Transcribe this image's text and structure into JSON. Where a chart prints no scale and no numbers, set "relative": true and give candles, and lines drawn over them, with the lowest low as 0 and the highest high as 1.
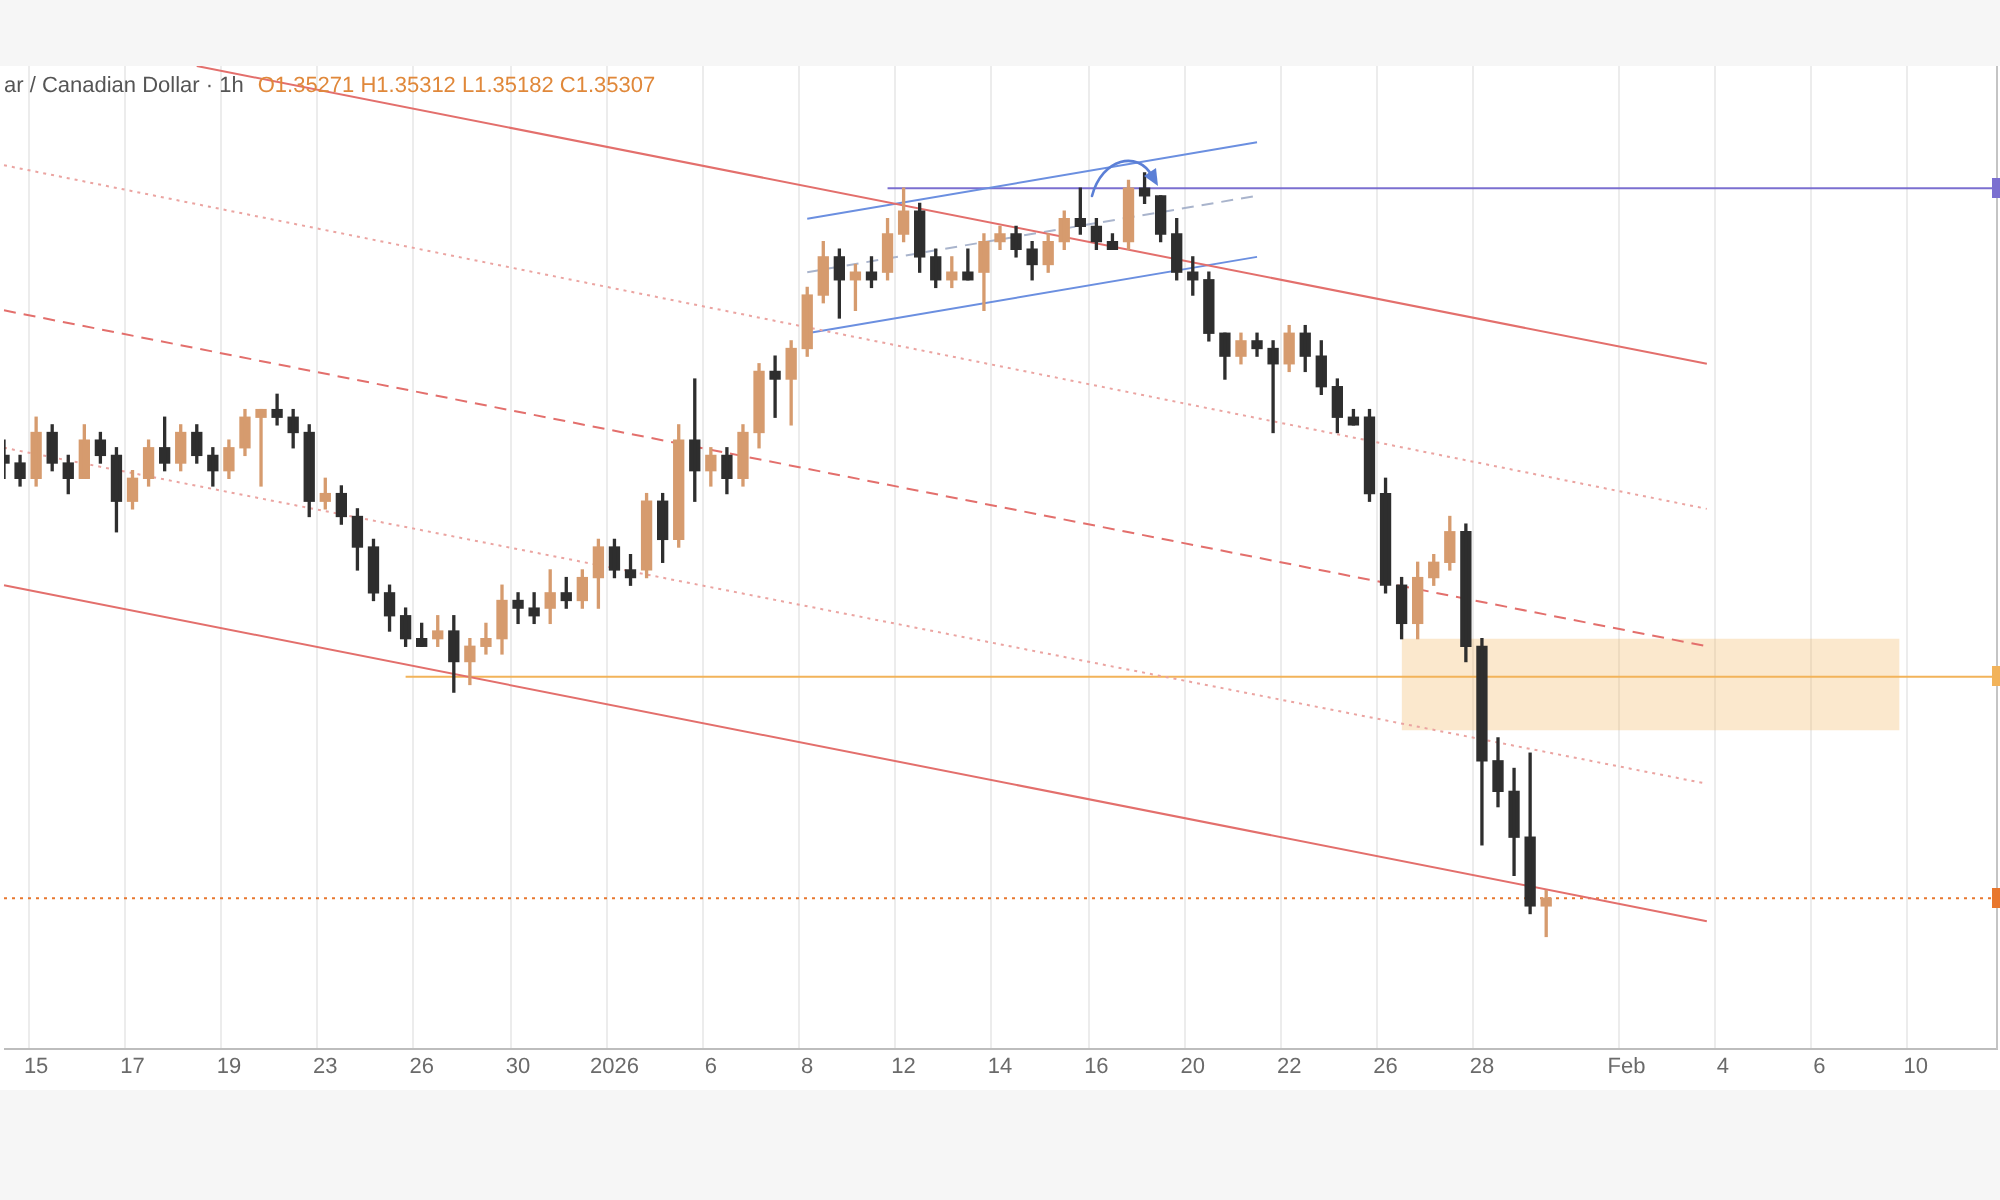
{
  "chart_data": {
    "type": "candlestick",
    "title": "ar / Canadian Dollar · 1h",
    "subtitle": "O1.35271 H1.35312 L1.35182 C1.35307",
    "relative": true,
    "grid": "x",
    "categories": [
      null,
      null,
      "15",
      null,
      null,
      null,
      null,
      null,
      "17",
      null,
      null,
      null,
      null,
      null,
      "19",
      null,
      null,
      null,
      null,
      null,
      "23",
      null,
      null,
      null,
      null,
      null,
      "26",
      null,
      null,
      null,
      null,
      null,
      "30",
      null,
      null,
      null,
      null,
      null,
      "2026",
      null,
      null,
      null,
      null,
      null,
      "6",
      null,
      null,
      null,
      null,
      null,
      "8",
      null,
      null,
      null,
      null,
      null,
      "12",
      null,
      null,
      null,
      null,
      null,
      "14",
      null,
      null,
      null,
      null,
      null,
      "16",
      null,
      null,
      null,
      null,
      null,
      "20",
      null,
      null,
      null,
      null,
      null,
      "22",
      null,
      null,
      null,
      null,
      null,
      "26",
      null,
      null,
      null,
      null,
      null,
      "28",
      null,
      null,
      null,
      null,
      null,
      null,
      null,
      null,
      "Feb",
      null,
      null,
      null,
      null,
      null,
      "4",
      null,
      null,
      null,
      null,
      null,
      "6",
      null,
      null,
      null,
      null,
      null,
      "10",
      null,
      null,
      null,
      null,
      null
    ],
    "ohlc": [
      [
        0.63,
        0.65,
        0.6,
        0.62
      ],
      [
        0.62,
        0.63,
        0.59,
        0.6
      ],
      [
        0.6,
        0.68,
        0.59,
        0.66
      ],
      [
        0.66,
        0.67,
        0.61,
        0.62
      ],
      [
        0.62,
        0.63,
        0.58,
        0.6
      ],
      [
        0.6,
        0.67,
        0.6,
        0.65
      ],
      [
        0.65,
        0.66,
        0.62,
        0.63
      ],
      [
        0.63,
        0.64,
        0.53,
        0.57
      ],
      [
        0.57,
        0.61,
        0.56,
        0.6
      ],
      [
        0.6,
        0.65,
        0.59,
        0.64
      ],
      [
        0.64,
        0.68,
        0.61,
        0.62
      ],
      [
        0.62,
        0.67,
        0.61,
        0.66
      ],
      [
        0.66,
        0.67,
        0.62,
        0.63
      ],
      [
        0.63,
        0.64,
        0.59,
        0.61
      ],
      [
        0.61,
        0.65,
        0.6,
        0.64
      ],
      [
        0.64,
        0.69,
        0.63,
        0.68
      ],
      [
        0.68,
        0.69,
        0.59,
        0.69
      ],
      [
        0.69,
        0.71,
        0.67,
        0.68
      ],
      [
        0.68,
        0.69,
        0.64,
        0.66
      ],
      [
        0.66,
        0.67,
        0.55,
        0.57
      ],
      [
        0.57,
        0.6,
        0.56,
        0.58
      ],
      [
        0.58,
        0.59,
        0.54,
        0.55
      ],
      [
        0.55,
        0.56,
        0.48,
        0.51
      ],
      [
        0.51,
        0.52,
        0.44,
        0.45
      ],
      [
        0.45,
        0.46,
        0.4,
        0.42
      ],
      [
        0.42,
        0.43,
        0.38,
        0.39
      ],
      [
        0.39,
        0.41,
        0.38,
        0.38
      ],
      [
        0.39,
        0.42,
        0.38,
        0.4
      ],
      [
        0.4,
        0.42,
        0.32,
        0.36
      ],
      [
        0.36,
        0.39,
        0.33,
        0.38
      ],
      [
        0.38,
        0.41,
        0.37,
        0.39
      ],
      [
        0.39,
        0.46,
        0.37,
        0.44
      ],
      [
        0.44,
        0.45,
        0.41,
        0.43
      ],
      [
        0.43,
        0.45,
        0.41,
        0.42
      ],
      [
        0.43,
        0.48,
        0.41,
        0.45
      ],
      [
        0.45,
        0.47,
        0.43,
        0.44
      ],
      [
        0.44,
        0.48,
        0.43,
        0.47
      ],
      [
        0.47,
        0.52,
        0.43,
        0.51
      ],
      [
        0.51,
        0.52,
        0.47,
        0.48
      ],
      [
        0.48,
        0.5,
        0.46,
        0.47
      ],
      [
        0.48,
        0.58,
        0.47,
        0.57
      ],
      [
        0.57,
        0.58,
        0.49,
        0.52
      ],
      [
        0.52,
        0.67,
        0.51,
        0.65
      ],
      [
        0.65,
        0.73,
        0.57,
        0.61
      ],
      [
        0.61,
        0.64,
        0.59,
        0.63
      ],
      [
        0.63,
        0.64,
        0.58,
        0.6
      ],
      [
        0.6,
        0.67,
        0.59,
        0.66
      ],
      [
        0.66,
        0.75,
        0.64,
        0.74
      ],
      [
        0.74,
        0.76,
        0.68,
        0.73
      ],
      [
        0.73,
        0.78,
        0.67,
        0.77
      ],
      [
        0.77,
        0.85,
        0.76,
        0.84
      ],
      [
        0.84,
        0.91,
        0.83,
        0.89
      ],
      [
        0.89,
        0.9,
        0.81,
        0.86
      ],
      [
        0.86,
        0.88,
        0.82,
        0.87
      ],
      [
        0.87,
        0.89,
        0.85,
        0.86
      ],
      [
        0.87,
        0.94,
        0.86,
        0.92
      ],
      [
        0.92,
        0.98,
        0.91,
        0.95
      ],
      [
        0.95,
        0.96,
        0.87,
        0.89
      ],
      [
        0.89,
        0.9,
        0.85,
        0.86
      ],
      [
        0.86,
        0.89,
        0.85,
        0.87
      ],
      [
        0.87,
        0.9,
        0.86,
        0.86
      ],
      [
        0.87,
        0.92,
        0.82,
        0.91
      ],
      [
        0.91,
        0.93,
        0.9,
        0.92
      ],
      [
        0.92,
        0.93,
        0.89,
        0.9
      ],
      [
        0.9,
        0.91,
        0.86,
        0.88
      ],
      [
        0.88,
        0.92,
        0.87,
        0.91
      ],
      [
        0.91,
        0.95,
        0.9,
        0.94
      ],
      [
        0.94,
        0.98,
        0.92,
        0.93
      ],
      [
        0.93,
        0.94,
        0.9,
        0.91
      ],
      [
        0.91,
        0.92,
        0.9,
        0.9
      ],
      [
        0.91,
        0.99,
        0.9,
        0.98
      ],
      [
        0.98,
        1,
        0.96,
        0.97
      ],
      [
        0.97,
        0.97,
        0.91,
        0.92
      ],
      [
        0.92,
        0.94,
        0.86,
        0.87
      ],
      [
        0.87,
        0.89,
        0.84,
        0.86
      ],
      [
        0.86,
        0.87,
        0.78,
        0.79
      ],
      [
        0.79,
        0.79,
        0.73,
        0.76
      ],
      [
        0.76,
        0.79,
        0.75,
        0.78
      ],
      [
        0.78,
        0.79,
        0.76,
        0.77
      ],
      [
        0.77,
        0.78,
        0.66,
        0.75
      ],
      [
        0.75,
        0.8,
        0.74,
        0.79
      ],
      [
        0.79,
        0.8,
        0.74,
        0.76
      ],
      [
        0.76,
        0.78,
        0.71,
        0.72
      ],
      [
        0.72,
        0.73,
        0.66,
        0.68
      ],
      [
        0.68,
        0.69,
        0.67,
        0.67
      ],
      [
        0.68,
        0.69,
        0.57,
        0.58
      ],
      [
        0.58,
        0.6,
        0.45,
        0.46
      ],
      [
        0.46,
        0.47,
        0.39,
        0.41
      ],
      [
        0.41,
        0.49,
        0.39,
        0.47
      ],
      [
        0.47,
        0.5,
        0.46,
        0.49
      ],
      [
        0.49,
        0.55,
        0.48,
        0.53
      ],
      [
        0.53,
        0.54,
        0.36,
        0.38
      ],
      [
        0.38,
        0.39,
        0.12,
        0.23
      ],
      [
        0.23,
        0.26,
        0.17,
        0.19
      ],
      [
        0.19,
        0.22,
        0.08,
        0.13
      ],
      [
        0.13,
        0.24,
        0.03,
        0.04
      ],
      [
        0.04,
        0.06,
        0,
        0.05
      ],
      null,
      null,
      null,
      null,
      null,
      null,
      null,
      null,
      null,
      null,
      null,
      null,
      null,
      null,
      null,
      null,
      null,
      null,
      null,
      null,
      null,
      null,
      null,
      null,
      null,
      null,
      null,
      null
    ],
    "colors": [
      "#2e2e2e",
      "#2e2e2e",
      "#d69b6e",
      "#2e2e2e",
      "#2e2e2e",
      "#d69b6e",
      "#2e2e2e",
      "#2e2e2e",
      "#d69b6e",
      "#d69b6e",
      "#2e2e2e",
      "#d69b6e",
      "#2e2e2e",
      "#2e2e2e",
      "#d69b6e",
      "#d69b6e",
      "#d69b6e",
      "#2e2e2e",
      "#2e2e2e",
      "#2e2e2e",
      "#d69b6e",
      "#2e2e2e",
      "#2e2e2e",
      "#2e2e2e",
      "#2e2e2e",
      "#2e2e2e",
      "#2e2e2e",
      "#d69b6e",
      "#2e2e2e",
      "#d69b6e",
      "#d69b6e",
      "#d69b6e",
      "#2e2e2e",
      "#2e2e2e",
      "#d69b6e",
      "#2e2e2e",
      "#d69b6e",
      "#d69b6e",
      "#2e2e2e",
      "#2e2e2e",
      "#d69b6e",
      "#2e2e2e",
      "#d69b6e",
      "#2e2e2e",
      "#d69b6e",
      "#2e2e2e",
      "#d69b6e",
      "#d69b6e",
      "#2e2e2e",
      "#d69b6e",
      "#d69b6e",
      "#d69b6e",
      "#2e2e2e",
      "#d69b6e",
      "#2e2e2e",
      "#d69b6e",
      "#d69b6e",
      "#2e2e2e",
      "#2e2e2e",
      "#d69b6e",
      "#2e2e2e",
      "#d69b6e",
      "#d69b6e",
      "#2e2e2e",
      "#2e2e2e",
      "#d69b6e",
      "#d69b6e",
      "#2e2e2e",
      "#2e2e2e",
      "#2e2e2e",
      "#d69b6e",
      "#2e2e2e",
      "#2e2e2e",
      "#2e2e2e",
      "#2e2e2e",
      "#2e2e2e",
      "#2e2e2e",
      "#d69b6e",
      "#2e2e2e",
      "#2e2e2e",
      "#d69b6e",
      "#2e2e2e",
      "#2e2e2e",
      "#2e2e2e",
      "#2e2e2e",
      "#2e2e2e",
      "#2e2e2e",
      "#2e2e2e",
      "#d69b6e",
      "#d69b6e",
      "#d69b6e",
      "#2e2e2e",
      "#2e2e2e",
      "#2e2e2e",
      "#2e2e2e",
      "#2e2e2e",
      "#d69b6e",
      null,
      null,
      null,
      null,
      null,
      null,
      null,
      null,
      null,
      null,
      null,
      null,
      null,
      null,
      null,
      null,
      null,
      null,
      null,
      null,
      null,
      null,
      null,
      null,
      null,
      null,
      null,
      null
    ],
    "series": [
      {
        "type": "line",
        "color": "#e36f6c",
        "line_style": "solid",
        "values": [
          null,
          null,
          null,
          null,
          null,
          null,
          null,
          null,
          null,
          null,
          null,
          null,
          1.14,
          null,
          null,
          null,
          null,
          null,
          null,
          null,
          null,
          null,
          null,
          null,
          null,
          null,
          null,
          null,
          null,
          null,
          null,
          null,
          null,
          null,
          null,
          null,
          null,
          null,
          null,
          null,
          null,
          null,
          null,
          null,
          null,
          null,
          null,
          null,
          null,
          null,
          null,
          null,
          null,
          null,
          null,
          null,
          null,
          null,
          null,
          null,
          null,
          null,
          null,
          null,
          null,
          null,
          null,
          null,
          null,
          null,
          null,
          null,
          null,
          null,
          null,
          null,
          null,
          null,
          null,
          null,
          null,
          null,
          null,
          null,
          null,
          null,
          null,
          null,
          null,
          null,
          null,
          null,
          null,
          null,
          null,
          null,
          null,
          null,
          null,
          null,
          null,
          null,
          null,
          null,
          null,
          null,
          0.75,
          null,
          null,
          null,
          null,
          null,
          null,
          null,
          null,
          null,
          null,
          null,
          null,
          null,
          null,
          null,
          null,
          null,
          null
        ]
      },
      {
        "type": "line",
        "color": "#eba4a1",
        "line_style": "dotted",
        "values": [
          1.01,
          null,
          null,
          null,
          null,
          null,
          null,
          null,
          null,
          null,
          null,
          null,
          null,
          null,
          null,
          null,
          null,
          null,
          null,
          null,
          null,
          null,
          null,
          null,
          null,
          null,
          null,
          null,
          null,
          null,
          null,
          null,
          null,
          null,
          null,
          null,
          null,
          null,
          null,
          null,
          null,
          null,
          null,
          null,
          null,
          null,
          null,
          null,
          null,
          null,
          null,
          null,
          null,
          null,
          null,
          null,
          null,
          null,
          null,
          null,
          null,
          null,
          null,
          null,
          null,
          null,
          null,
          null,
          null,
          null,
          null,
          null,
          null,
          null,
          null,
          null,
          null,
          null,
          null,
          null,
          null,
          null,
          null,
          null,
          null,
          null,
          null,
          null,
          null,
          null,
          null,
          null,
          null,
          null,
          null,
          null,
          null,
          null,
          null,
          null,
          null,
          null,
          null,
          null,
          null,
          null,
          0.56,
          null,
          null,
          null,
          null,
          null,
          null,
          null,
          null,
          null,
          null,
          null,
          null,
          null,
          null,
          null,
          null,
          null,
          null
        ]
      },
      {
        "type": "line",
        "color": "#e36f6c",
        "line_style": "dashed",
        "values": [
          0.82,
          null,
          null,
          null,
          null,
          null,
          null,
          null,
          null,
          null,
          null,
          null,
          null,
          null,
          null,
          null,
          null,
          null,
          null,
          null,
          null,
          null,
          null,
          null,
          null,
          null,
          null,
          null,
          null,
          null,
          null,
          null,
          null,
          null,
          null,
          null,
          null,
          null,
          null,
          null,
          null,
          null,
          null,
          null,
          null,
          null,
          null,
          null,
          null,
          null,
          null,
          null,
          null,
          null,
          null,
          null,
          null,
          null,
          null,
          null,
          null,
          null,
          null,
          null,
          null,
          null,
          null,
          null,
          null,
          null,
          null,
          null,
          null,
          null,
          null,
          null,
          null,
          null,
          null,
          null,
          null,
          null,
          null,
          null,
          null,
          null,
          null,
          null,
          null,
          null,
          null,
          null,
          null,
          null,
          null,
          null,
          null,
          null,
          null,
          null,
          null,
          null,
          null,
          null,
          null,
          null,
          0.38,
          null,
          null,
          null,
          null,
          null,
          null,
          null,
          null,
          null,
          null,
          null,
          null,
          null,
          null,
          null,
          null,
          null,
          null
        ]
      },
      {
        "type": "line",
        "color": "#eba4a1",
        "line_style": "dotted",
        "values": [
          0.64,
          null,
          null,
          null,
          null,
          null,
          null,
          null,
          null,
          null,
          null,
          null,
          null,
          null,
          null,
          null,
          null,
          null,
          null,
          null,
          null,
          null,
          null,
          null,
          null,
          null,
          null,
          null,
          null,
          null,
          null,
          null,
          null,
          null,
          null,
          null,
          null,
          null,
          null,
          null,
          null,
          null,
          null,
          null,
          null,
          null,
          null,
          null,
          null,
          null,
          null,
          null,
          null,
          null,
          null,
          null,
          null,
          null,
          null,
          null,
          null,
          null,
          null,
          null,
          null,
          null,
          null,
          null,
          null,
          null,
          null,
          null,
          null,
          null,
          null,
          null,
          null,
          null,
          null,
          null,
          null,
          null,
          null,
          null,
          null,
          null,
          null,
          null,
          null,
          null,
          null,
          null,
          null,
          null,
          null,
          null,
          null,
          null,
          null,
          null,
          null,
          null,
          null,
          null,
          null,
          null,
          0.2,
          null,
          null,
          null,
          null,
          null,
          null,
          null,
          null,
          null,
          null,
          null,
          null,
          null,
          null,
          null,
          null,
          null,
          null
        ]
      },
      {
        "type": "line",
        "color": "#e36f6c",
        "line_style": "solid",
        "values": [
          0.46,
          null,
          null,
          null,
          null,
          null,
          null,
          null,
          null,
          null,
          null,
          null,
          null,
          null,
          null,
          null,
          null,
          null,
          null,
          null,
          null,
          null,
          null,
          null,
          null,
          null,
          null,
          null,
          null,
          null,
          null,
          null,
          null,
          null,
          null,
          null,
          null,
          null,
          null,
          null,
          null,
          null,
          null,
          null,
          null,
          null,
          null,
          null,
          null,
          null,
          null,
          null,
          null,
          null,
          null,
          null,
          null,
          null,
          null,
          null,
          null,
          null,
          null,
          null,
          null,
          null,
          null,
          null,
          null,
          null,
          null,
          null,
          null,
          null,
          null,
          null,
          null,
          null,
          null,
          null,
          null,
          null,
          null,
          null,
          null,
          null,
          null,
          null,
          null,
          null,
          null,
          null,
          null,
          null,
          null,
          null,
          null,
          null,
          null,
          null,
          null,
          null,
          null,
          null,
          null,
          null,
          0.02,
          null,
          null,
          null,
          null,
          null,
          null,
          null,
          null,
          null,
          null,
          null,
          null,
          null,
          null,
          null,
          null,
          null,
          null
        ]
      },
      {
        "type": "line",
        "color": "#6b8fe0",
        "line_style": "solid",
        "values": [
          null,
          null,
          null,
          null,
          null,
          null,
          null,
          null,
          null,
          null,
          null,
          null,
          null,
          null,
          null,
          null,
          null,
          null,
          null,
          null,
          null,
          null,
          null,
          null,
          null,
          null,
          null,
          null,
          null,
          null,
          null,
          null,
          null,
          null,
          null,
          null,
          null,
          null,
          null,
          null,
          null,
          null,
          null,
          null,
          null,
          null,
          null,
          null,
          null,
          null,
          0.94,
          null,
          null,
          null,
          null,
          null,
          null,
          null,
          null,
          null,
          null,
          null,
          null,
          null,
          null,
          null,
          null,
          null,
          null,
          null,
          null,
          null,
          null,
          null,
          null,
          null,
          null,
          null,
          1.04,
          null,
          null,
          null,
          null,
          null,
          null,
          null,
          null,
          null,
          null,
          null,
          null,
          null,
          null,
          null,
          null,
          null,
          null,
          null,
          null,
          null,
          null,
          null,
          null,
          null,
          null,
          null,
          null,
          null,
          null,
          null,
          null,
          null,
          null,
          null,
          null,
          null,
          null,
          null,
          null,
          null,
          null,
          null,
          null,
          null,
          null
        ]
      },
      {
        "type": "line",
        "color": "#6b8fe0",
        "line_style": "solid",
        "values": [
          null,
          null,
          null,
          null,
          null,
          null,
          null,
          null,
          null,
          null,
          null,
          null,
          null,
          null,
          null,
          null,
          null,
          null,
          null,
          null,
          null,
          null,
          null,
          null,
          null,
          null,
          null,
          null,
          null,
          null,
          null,
          null,
          null,
          null,
          null,
          null,
          null,
          null,
          null,
          null,
          null,
          null,
          null,
          null,
          null,
          null,
          null,
          null,
          null,
          null,
          0.79,
          null,
          null,
          null,
          null,
          null,
          null,
          null,
          null,
          null,
          null,
          null,
          null,
          null,
          null,
          null,
          null,
          null,
          null,
          null,
          null,
          null,
          null,
          null,
          null,
          null,
          null,
          null,
          0.89,
          null,
          null,
          null,
          null,
          null,
          null,
          null,
          null,
          null,
          null,
          null,
          null,
          null,
          null,
          null,
          null,
          null,
          null,
          null,
          null,
          null,
          null,
          null,
          null,
          null,
          null,
          null,
          null,
          null,
          null,
          null,
          null,
          null,
          null,
          null,
          null,
          null,
          null,
          null,
          null,
          null,
          null,
          null,
          null,
          null,
          null
        ]
      },
      {
        "type": "line",
        "color": "#a9b4cc",
        "line_style": "dashed",
        "values": [
          null,
          null,
          null,
          null,
          null,
          null,
          null,
          null,
          null,
          null,
          null,
          null,
          null,
          null,
          null,
          null,
          null,
          null,
          null,
          null,
          null,
          null,
          null,
          null,
          null,
          null,
          null,
          null,
          null,
          null,
          null,
          null,
          null,
          null,
          null,
          null,
          null,
          null,
          null,
          null,
          null,
          null,
          null,
          null,
          null,
          null,
          null,
          null,
          null,
          null,
          0.87,
          null,
          null,
          null,
          null,
          null,
          null,
          null,
          null,
          null,
          null,
          null,
          null,
          null,
          null,
          null,
          null,
          null,
          null,
          null,
          null,
          null,
          null,
          null,
          null,
          null,
          null,
          null,
          0.97,
          null,
          null,
          null,
          null,
          null,
          null,
          null,
          null,
          null,
          null,
          null,
          null,
          null,
          null,
          null,
          null,
          null,
          null,
          null,
          null,
          null,
          null,
          null,
          null,
          null,
          null,
          null,
          null,
          null,
          null,
          null,
          null,
          null,
          null,
          null,
          null,
          null,
          null,
          null,
          null,
          null,
          null,
          null,
          null,
          null,
          null
        ]
      },
      {
        "type": "line",
        "color": "#7b6fd0",
        "line_style": "solid",
        "values": [
          null,
          null,
          null,
          null,
          null,
          null,
          null,
          null,
          null,
          null,
          null,
          null,
          null,
          null,
          null,
          null,
          null,
          null,
          null,
          null,
          null,
          null,
          null,
          null,
          null,
          null,
          null,
          null,
          null,
          null,
          null,
          null,
          null,
          null,
          null,
          null,
          null,
          null,
          null,
          null,
          null,
          null,
          null,
          null,
          null,
          null,
          null,
          null,
          null,
          null,
          null,
          null,
          null,
          null,
          null,
          0.98,
          null,
          null,
          null,
          null,
          null,
          null,
          null,
          null,
          null,
          null,
          null,
          null,
          null,
          null,
          null,
          null,
          null,
          null,
          null,
          null,
          null,
          null,
          null,
          null,
          null,
          null,
          null,
          null,
          null,
          null,
          null,
          null,
          null,
          null,
          null,
          null,
          null,
          null,
          null,
          null,
          null,
          null,
          null,
          null,
          null,
          null,
          null,
          null,
          null,
          null,
          null,
          null,
          null,
          null,
          null,
          null,
          null,
          null,
          null,
          null,
          null,
          null,
          null,
          null,
          null,
          null,
          null,
          null,
          0.98
        ]
      },
      {
        "type": "line",
        "color": "#f2b35a",
        "line_style": "solid",
        "values": [
          null,
          null,
          null,
          null,
          null,
          null,
          null,
          null,
          null,
          null,
          null,
          null,
          null,
          null,
          null,
          null,
          null,
          null,
          null,
          null,
          null,
          null,
          null,
          null,
          null,
          0.34,
          null,
          null,
          null,
          null,
          null,
          null,
          null,
          null,
          null,
          null,
          null,
          null,
          null,
          null,
          null,
          null,
          null,
          null,
          null,
          null,
          null,
          null,
          null,
          null,
          null,
          null,
          null,
          null,
          null,
          null,
          null,
          null,
          null,
          null,
          null,
          null,
          null,
          null,
          null,
          null,
          null,
          null,
          null,
          null,
          null,
          null,
          null,
          null,
          null,
          null,
          null,
          null,
          null,
          null,
          null,
          null,
          null,
          null,
          null,
          null,
          null,
          null,
          null,
          null,
          null,
          null,
          null,
          null,
          null,
          null,
          null,
          null,
          null,
          null,
          null,
          null,
          null,
          null,
          null,
          null,
          null,
          null,
          null,
          null,
          null,
          null,
          null,
          null,
          null,
          null,
          null,
          null,
          null,
          null,
          null,
          null,
          null,
          null,
          0.34
        ],
        "lower": [
          null,
          null,
          null,
          null,
          null,
          null,
          null,
          null,
          null,
          null,
          null,
          null,
          null,
          null,
          null,
          null,
          null,
          null,
          null,
          null,
          null,
          null,
          null,
          null,
          null,
          null,
          null,
          null,
          null,
          null,
          null,
          null,
          null,
          null,
          null,
          null,
          null,
          null,
          null,
          null,
          null,
          null,
          null,
          null,
          null,
          null,
          null,
          null,
          null,
          null,
          null,
          null,
          null,
          null,
          null,
          null,
          null,
          null,
          null,
          null,
          null,
          null,
          null,
          null,
          null,
          null,
          null,
          null,
          null,
          null,
          null,
          null,
          null,
          null,
          null,
          null,
          null,
          null,
          null,
          null,
          null,
          null,
          null,
          null,
          null,
          null,
          null,
          0.27,
          null,
          null,
          null,
          null,
          null,
          null,
          null,
          null,
          null,
          null,
          null,
          null,
          null,
          null,
          null,
          null,
          null,
          null,
          null,
          null,
          null,
          null,
          null,
          null,
          null,
          null,
          null,
          null,
          null,
          null,
          0.27,
          null,
          null,
          null,
          null,
          null,
          null
        ],
        "upper": [
          null,
          null,
          null,
          null,
          null,
          null,
          null,
          null,
          null,
          null,
          null,
          null,
          null,
          null,
          null,
          null,
          null,
          null,
          null,
          null,
          null,
          null,
          null,
          null,
          null,
          null,
          null,
          null,
          null,
          null,
          null,
          null,
          null,
          null,
          null,
          null,
          null,
          null,
          null,
          null,
          null,
          null,
          null,
          null,
          null,
          null,
          null,
          null,
          null,
          null,
          null,
          null,
          null,
          null,
          null,
          null,
          null,
          null,
          null,
          null,
          null,
          null,
          null,
          null,
          null,
          null,
          null,
          null,
          null,
          null,
          null,
          null,
          null,
          null,
          null,
          null,
          null,
          null,
          null,
          null,
          null,
          null,
          null,
          null,
          null,
          null,
          null,
          0.39,
          null,
          null,
          null,
          null,
          null,
          null,
          null,
          null,
          null,
          null,
          null,
          null,
          null,
          null,
          null,
          null,
          null,
          null,
          null,
          null,
          null,
          null,
          null,
          null,
          null,
          null,
          null,
          null,
          null,
          null,
          0.39,
          null,
          null,
          null,
          null,
          null,
          null
        ]
      }
    ],
    "ref_lines": [
      {
        "axis": "y",
        "value": 0.05,
        "color": "#e8772e",
        "line_style": "dotted"
      }
    ]
  }
}
